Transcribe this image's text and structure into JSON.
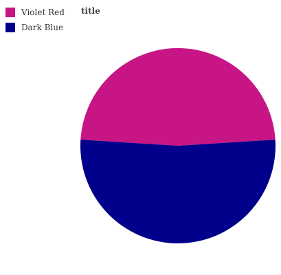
{
  "chart_data": {
    "type": "pie",
    "title": "title",
    "categories": [
      "Violet Red",
      "Dark Blue"
    ],
    "values": [
      48,
      52
    ],
    "colors": [
      "#c71585",
      "#00008b"
    ],
    "legend_position": "top-left"
  }
}
